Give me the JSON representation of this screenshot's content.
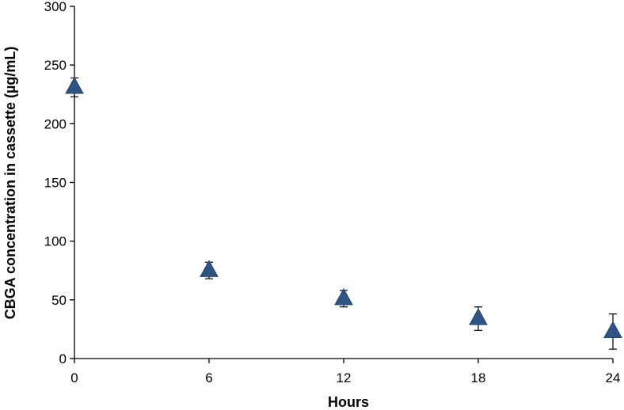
{
  "chart_data": {
    "type": "scatter",
    "title": "",
    "xlabel": "Hours",
    "ylabel": "CBGA concentration in cassette (µg/mL)",
    "xlim": [
      0,
      24
    ],
    "ylim": [
      0,
      300
    ],
    "xticks": [
      0,
      6,
      12,
      18,
      24
    ],
    "yticks": [
      0,
      50,
      100,
      150,
      200,
      250,
      300
    ],
    "grid": false,
    "legend": "none",
    "marker": "triangle",
    "marker_color": "#2e5484",
    "series": [
      {
        "x": [
          0,
          6,
          12,
          18,
          24
        ],
        "y": [
          231,
          75,
          51,
          34,
          23
        ],
        "error": [
          8,
          7,
          7,
          10,
          15
        ]
      }
    ]
  }
}
